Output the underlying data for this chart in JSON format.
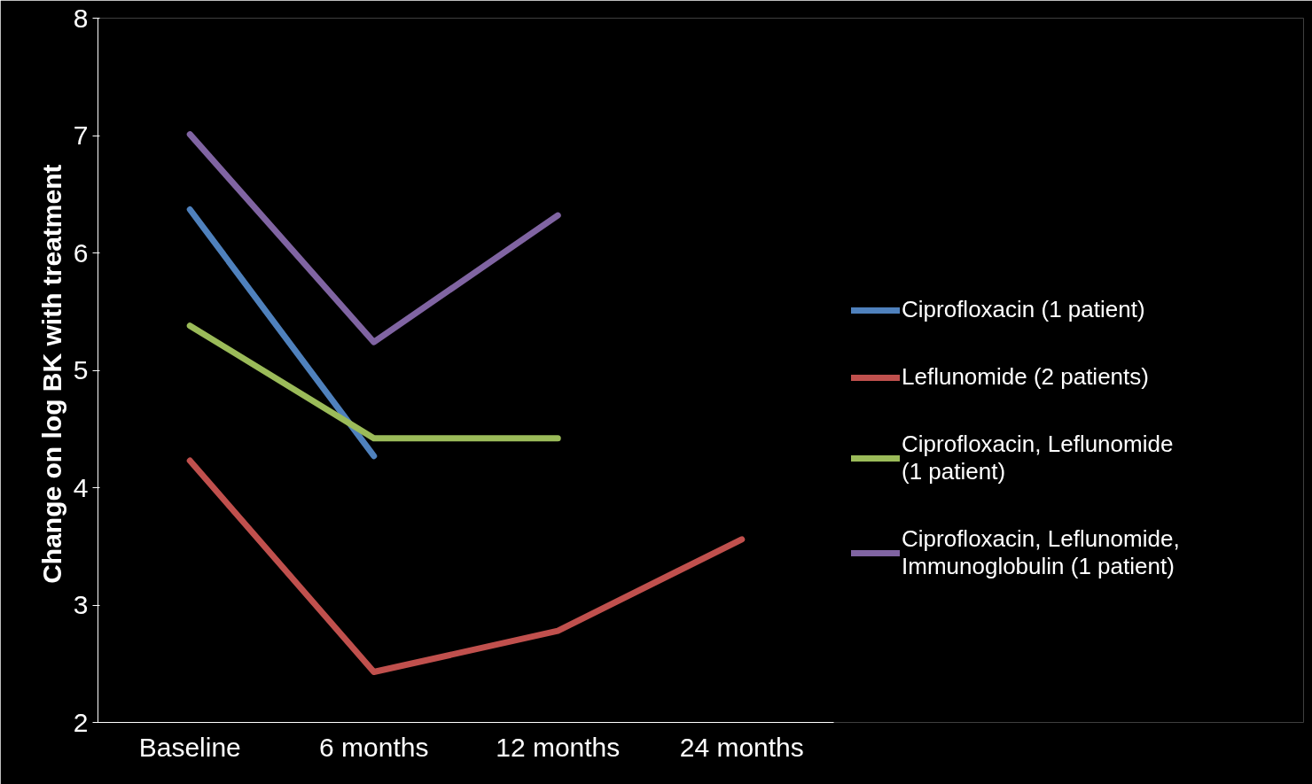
{
  "chart_data": {
    "type": "line",
    "ylabel": "Change on log BK  with treatment",
    "categories": [
      "Baseline",
      "6 months",
      "12 months",
      "24 months"
    ],
    "series": [
      {
        "name": "Ciprofloxacin (1 patient)",
        "color": "#4f81bd",
        "values": [
          6.37,
          4.27,
          null,
          null
        ]
      },
      {
        "name": "Leflunomide (2 patients)",
        "color": "#c0504d",
        "values": [
          4.23,
          2.43,
          2.78,
          3.56
        ]
      },
      {
        "name": "Ciprofloxacin, Leflunomide (1 patient)",
        "color": "#9bbb59",
        "values": [
          5.38,
          4.42,
          4.42,
          null
        ]
      },
      {
        "name": "Ciprofloxacin, Leflunomide, Immunoglobulin (1 patient)",
        "color": "#8064a2",
        "values": [
          7.01,
          5.24,
          6.32,
          null
        ]
      }
    ],
    "ylim": [
      2,
      8
    ],
    "yticks": [
      2,
      3,
      4,
      5,
      6,
      7,
      8
    ],
    "grid": false,
    "legend": "right",
    "marker": "none",
    "line_style": "solid"
  }
}
